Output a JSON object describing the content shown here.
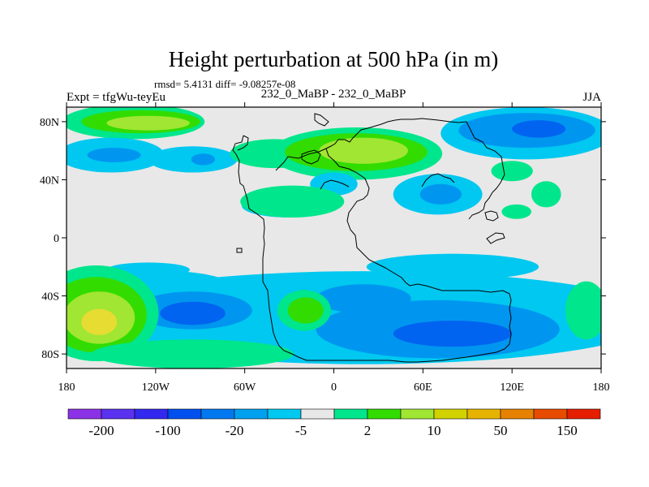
{
  "title": "Height perturbation at 500 hPa (in m)",
  "stats_line": "rmsd= 5.4131 diff= -9.08257e-08",
  "left_string": "Expt = tfgWu-teyEu",
  "center_string": "232_0_MaBP - 232_0_MaBP",
  "right_string": "JJA",
  "map": {
    "projection": "cylindrical-equidistant",
    "lon_range": [
      -180,
      180
    ],
    "lat_range": [
      -90,
      90
    ],
    "x_ticks": [
      {
        "value": -180,
        "label": "180"
      },
      {
        "value": -120,
        "label": "120W"
      },
      {
        "value": -60,
        "label": "60W"
      },
      {
        "value": 0,
        "label": "0"
      },
      {
        "value": 60,
        "label": "60E"
      },
      {
        "value": 120,
        "label": "120E"
      },
      {
        "value": 180,
        "label": "180"
      }
    ],
    "y_ticks": [
      {
        "value": 80,
        "label": "80N"
      },
      {
        "value": 40,
        "label": "40N"
      },
      {
        "value": 0,
        "label": "0"
      },
      {
        "value": -40,
        "label": "40S"
      },
      {
        "value": -80,
        "label": "80S"
      }
    ],
    "background_color": "#e8e8e8",
    "coastline_color": "#000000",
    "level_colors": {
      "lt_-5": "#00c8f0",
      "lt_-20": "#0096f0",
      "lt_-100": "#0064f0",
      "2_to_5": "#00e68c",
      "5_to_10": "#32dc00",
      "10_to_20": "#a0e632",
      "20_to_50": "#e6dc32"
    },
    "regions": [
      {
        "level": "2_to_5",
        "lon": -135,
        "lat": 80,
        "rx": 48,
        "ry": 12
      },
      {
        "level": "5_to_10",
        "lon": -130,
        "lat": 80,
        "rx": 40,
        "ry": 8
      },
      {
        "level": "10_to_20",
        "lon": -125,
        "lat": 79,
        "rx": 28,
        "ry": 5
      },
      {
        "level": "lt_-5",
        "lon": -150,
        "lat": 57,
        "rx": 36,
        "ry": 12
      },
      {
        "level": "lt_-20",
        "lon": -148,
        "lat": 57,
        "rx": 18,
        "ry": 5
      },
      {
        "level": "lt_-5",
        "lon": -95,
        "lat": 54,
        "rx": 30,
        "ry": 9
      },
      {
        "level": "lt_-20",
        "lon": -88,
        "lat": 54,
        "rx": 8,
        "ry": 4
      },
      {
        "level": "2_to_5",
        "lon": -40,
        "lat": 58,
        "rx": 30,
        "ry": 10
      },
      {
        "level": "2_to_5",
        "lon": 15,
        "lat": 58,
        "rx": 58,
        "ry": 18
      },
      {
        "level": "5_to_10",
        "lon": 15,
        "lat": 59,
        "rx": 48,
        "ry": 13
      },
      {
        "level": "10_to_20",
        "lon": 20,
        "lat": 60,
        "rx": 30,
        "ry": 9
      },
      {
        "level": "lt_-5",
        "lon": 130,
        "lat": 72,
        "rx": 58,
        "ry": 18
      },
      {
        "level": "lt_-20",
        "lon": 130,
        "lat": 74,
        "rx": 46,
        "ry": 12
      },
      {
        "level": "lt_-100",
        "lon": 138,
        "lat": 75,
        "rx": 18,
        "ry": 6
      },
      {
        "level": "2_to_5",
        "lon": 120,
        "lat": 46,
        "rx": 14,
        "ry": 7
      },
      {
        "level": "2_to_5",
        "lon": 143,
        "lat": 30,
        "rx": 10,
        "ry": 9
      },
      {
        "level": "lt_-5",
        "lon": 0,
        "lat": 37,
        "rx": 16,
        "ry": 8
      },
      {
        "level": "lt_-5",
        "lon": -30,
        "lat": 22,
        "rx": 32,
        "ry": 8
      },
      {
        "level": "2_to_5",
        "lon": -28,
        "lat": 25,
        "rx": 35,
        "ry": 11
      },
      {
        "level": "lt_-5",
        "lon": 70,
        "lat": 30,
        "rx": 30,
        "ry": 14
      },
      {
        "level": "lt_-20",
        "lon": 72,
        "lat": 30,
        "rx": 14,
        "ry": 7
      },
      {
        "level": "2_to_5",
        "lon": 123,
        "lat": 18,
        "rx": 10,
        "ry": 5
      },
      {
        "level": "lt_-5",
        "lon": -125,
        "lat": -22,
        "rx": 28,
        "ry": 5
      },
      {
        "level": "lt_-5",
        "lon": 80,
        "lat": -20,
        "rx": 58,
        "ry": 9
      },
      {
        "level": "lt_-5",
        "lon": 20,
        "lat": -55,
        "rx": 200,
        "ry": 32
      },
      {
        "level": "lt_-20",
        "lon": 70,
        "lat": -63,
        "rx": 82,
        "ry": 20
      },
      {
        "level": "lt_-100",
        "lon": 80,
        "lat": -66,
        "rx": 40,
        "ry": 9
      },
      {
        "level": "lt_-20",
        "lon": 20,
        "lat": -42,
        "rx": 32,
        "ry": 10
      },
      {
        "level": "lt_-5",
        "lon": -110,
        "lat": -45,
        "rx": 55,
        "ry": 22
      },
      {
        "level": "lt_-20",
        "lon": -95,
        "lat": -50,
        "rx": 40,
        "ry": 13
      },
      {
        "level": "lt_-100",
        "lon": -95,
        "lat": -52,
        "rx": 22,
        "ry": 8
      },
      {
        "level": "2_to_5",
        "lon": -160,
        "lat": -52,
        "rx": 42,
        "ry": 33
      },
      {
        "level": "5_to_10",
        "lon": -160,
        "lat": -53,
        "rx": 34,
        "ry": 26
      },
      {
        "level": "10_to_20",
        "lon": -158,
        "lat": -55,
        "rx": 24,
        "ry": 18
      },
      {
        "level": "20_to_50",
        "lon": -158,
        "lat": -58,
        "rx": 12,
        "ry": 9
      },
      {
        "level": "2_to_5",
        "lon": -20,
        "lat": -50,
        "rx": 18,
        "ry": 14
      },
      {
        "level": "5_to_10",
        "lon": -19,
        "lat": -50,
        "rx": 12,
        "ry": 9
      },
      {
        "level": "2_to_5",
        "lon": -95,
        "lat": -80,
        "rx": 68,
        "ry": 10
      },
      {
        "level": "2_to_5",
        "lon": 170,
        "lat": -50,
        "rx": 14,
        "ry": 20
      }
    ]
  },
  "colorbar": {
    "colors": [
      "#8c32e6",
      "#5a32f0",
      "#3228f0",
      "#0050f0",
      "#0078f0",
      "#00a0f0",
      "#00c8f0",
      "#e8e8e8",
      "#00e68c",
      "#32dc00",
      "#a0e632",
      "#d2d200",
      "#e6b400",
      "#e68200",
      "#e64b00",
      "#e61e00"
    ],
    "labels": [
      "-200",
      "-100",
      "-20",
      "-5",
      "2",
      "10",
      "50",
      "150"
    ]
  }
}
